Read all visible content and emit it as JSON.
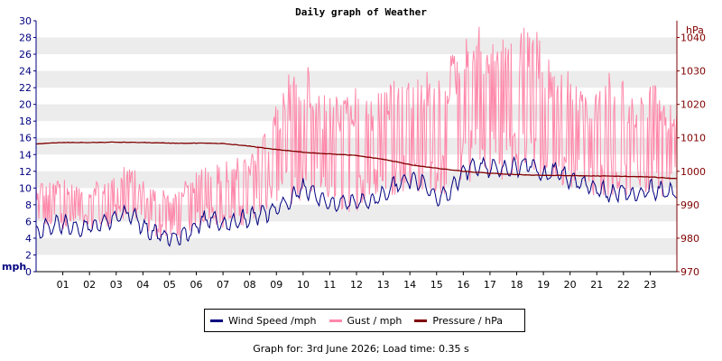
{
  "chart_data": {
    "type": "line",
    "title": "Daily graph of Weather",
    "left_axis": {
      "label": "mph",
      "ylim": [
        0,
        30
      ],
      "ticks": [
        0,
        2,
        4,
        6,
        8,
        10,
        12,
        14,
        16,
        18,
        20,
        22,
        24,
        26,
        28,
        30
      ]
    },
    "right_axis": {
      "label": "hPa",
      "ylim": [
        970,
        1045
      ],
      "ticks": [
        970,
        980,
        990,
        1000,
        1010,
        1020,
        1030,
        1040
      ]
    },
    "x_axis": {
      "xlim": [
        0,
        24
      ],
      "tick_labels": [
        "01",
        "02",
        "03",
        "04",
        "05",
        "06",
        "07",
        "08",
        "09",
        "10",
        "11",
        "12",
        "13",
        "14",
        "15",
        "16",
        "17",
        "18",
        "19",
        "20",
        "21",
        "22",
        "23"
      ]
    },
    "grid": "horizontal alternating bands",
    "legend_position": "bottom-center",
    "series": [
      {
        "name": "Wind Speed /mph",
        "color": "#000080",
        "axis": "left",
        "x": [
          0,
          0.5,
          1,
          1.5,
          2,
          2.5,
          3,
          3.5,
          4,
          4.5,
          5,
          5.5,
          6,
          6.5,
          7,
          7.5,
          8,
          8.5,
          9,
          9.5,
          10,
          10.5,
          11,
          11.5,
          12,
          12.5,
          13,
          13.5,
          14,
          14.5,
          15,
          15.5,
          16,
          16.5,
          17,
          17.5,
          18,
          18.5,
          19,
          19.5,
          20,
          20.5,
          21,
          21.5,
          22,
          22.5,
          23,
          23.5,
          24
        ],
        "values": [
          4.5,
          5.5,
          5.8,
          5.0,
          5.5,
          6.0,
          6.5,
          7.0,
          5.5,
          4.5,
          4.0,
          4.2,
          5.5,
          6.5,
          5.5,
          6.0,
          6.5,
          7.0,
          7.5,
          8.5,
          10.0,
          9.0,
          8.0,
          8.0,
          8.5,
          8.5,
          9.0,
          10.5,
          11.0,
          10.5,
          9.0,
          9.5,
          12.0,
          12.5,
          12.5,
          12.0,
          12.5,
          13.0,
          11.5,
          12.0,
          11.0,
          10.5,
          10.0,
          9.5,
          9.5,
          9.0,
          10.0,
          9.5,
          9.5
        ]
      },
      {
        "name": "Gust / mph",
        "color": "#ff88aa",
        "axis": "left",
        "x": [
          0,
          0.5,
          1,
          1.5,
          2,
          2.5,
          3,
          3.5,
          4,
          4.5,
          5,
          5.5,
          6,
          6.5,
          7,
          7.5,
          8,
          8.5,
          9,
          9.5,
          10,
          10.5,
          11,
          11.5,
          12,
          12.5,
          13,
          13.5,
          14,
          14.5,
          15,
          15.5,
          16,
          16.5,
          17,
          17.5,
          18,
          18.5,
          19,
          19.5,
          20,
          20.5,
          21,
          21.5,
          22,
          22.5,
          23,
          23.5,
          24
        ],
        "low": [
          4,
          5,
          5,
          5,
          5,
          5,
          6,
          6,
          5,
          4,
          4,
          4,
          5,
          6,
          5,
          5,
          6,
          7,
          7,
          7,
          8,
          8,
          7,
          7,
          7,
          8,
          8,
          9,
          10,
          9,
          9,
          9,
          10,
          11,
          11,
          11,
          11,
          12,
          10,
          10,
          10,
          9,
          9,
          9,
          9,
          9,
          9,
          9,
          9
        ],
        "high": [
          11,
          11,
          11,
          11,
          11,
          11,
          12,
          13,
          11,
          10,
          10,
          11,
          12,
          13,
          13,
          14,
          14,
          16,
          20,
          24,
          26,
          22,
          21,
          22,
          22,
          21,
          22,
          23,
          24,
          24,
          24,
          26,
          28,
          30,
          28,
          30,
          28,
          31,
          27,
          24,
          24,
          21,
          22,
          24,
          23,
          20,
          24,
          20,
          20
        ]
      },
      {
        "name": "Pressure / hPa",
        "color": "#800000",
        "axis": "right",
        "x": [
          0,
          1,
          2,
          3,
          4,
          5,
          6,
          7,
          8,
          9,
          10,
          11,
          12,
          13,
          14,
          15,
          16,
          17,
          18,
          19,
          20,
          21,
          22,
          23,
          24
        ],
        "values": [
          1008.2,
          1008.6,
          1008.6,
          1008.7,
          1008.6,
          1008.4,
          1008.4,
          1008.3,
          1007.5,
          1006.5,
          1005.7,
          1005.2,
          1004.7,
          1003.6,
          1002.0,
          1000.9,
          1000.0,
          999.4,
          999.0,
          998.8,
          998.7,
          998.6,
          998.5,
          998.3,
          997.8
        ]
      }
    ]
  },
  "footer_text": "Graph for: 3rd June 2026; Load time: 0.35 s"
}
